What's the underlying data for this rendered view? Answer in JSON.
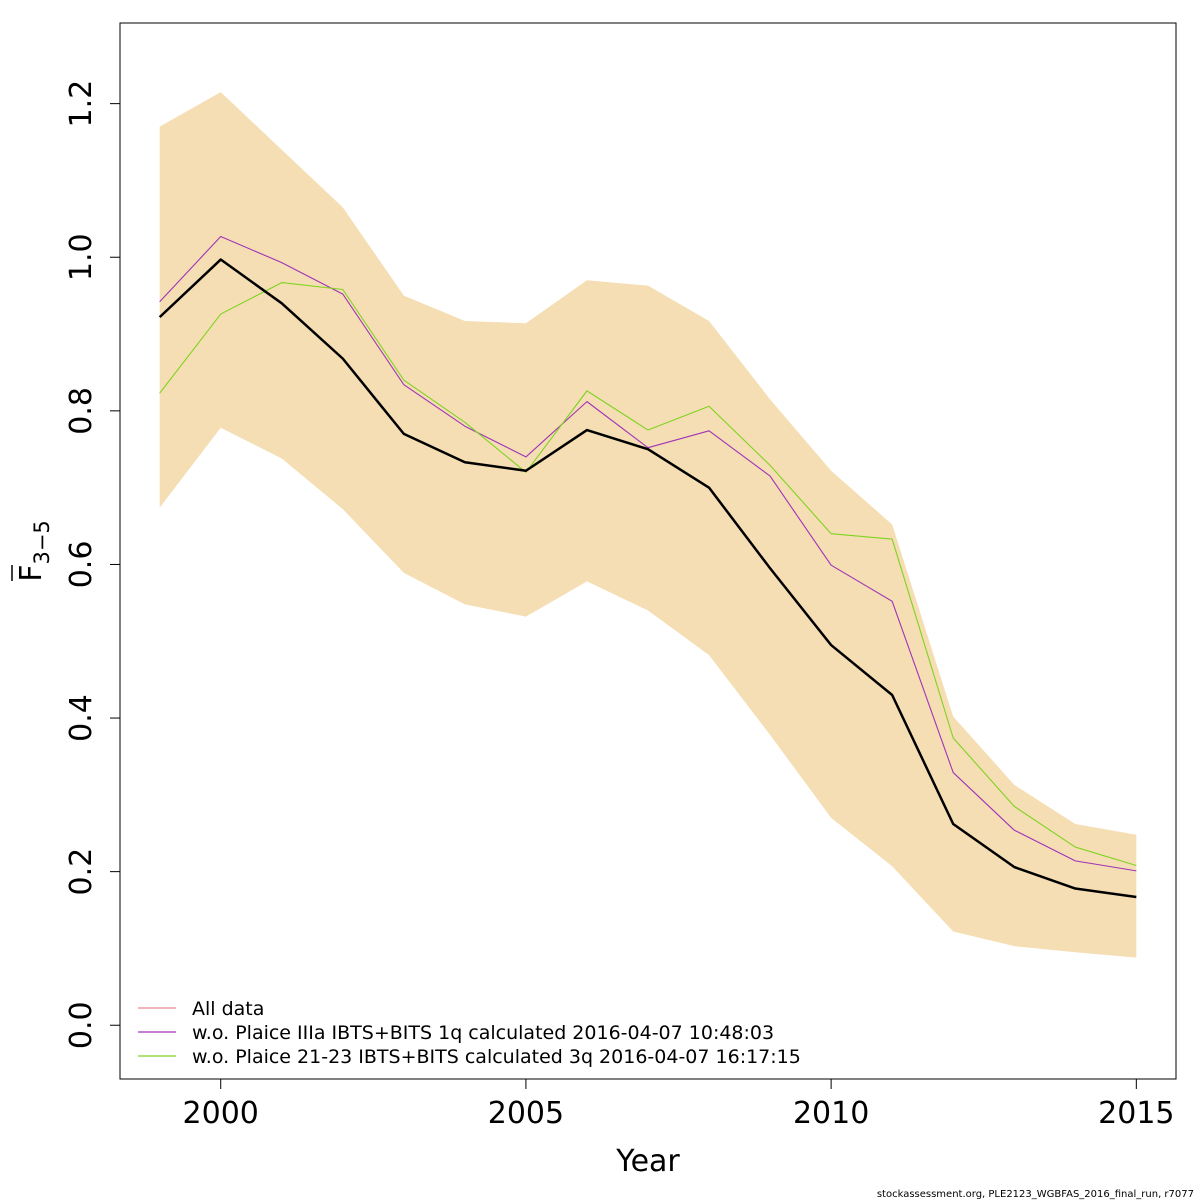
{
  "chart_data": {
    "type": "line",
    "xlabel": "Year",
    "ylabel_main": "F",
    "ylabel_sub": "3−5",
    "xlim": [
      1998.35,
      2015.65
    ],
    "ylim": [
      -0.07,
      1.305
    ],
    "x_ticks": [
      2000,
      2005,
      2010,
      2015
    ],
    "x_tick_labels": [
      "2000",
      "2005",
      "2010",
      "2015"
    ],
    "y_ticks": [
      0.0,
      0.2,
      0.4,
      0.6,
      0.8,
      1.0,
      1.2
    ],
    "y_tick_labels": [
      "0.0",
      "0.2",
      "0.4",
      "0.6",
      "0.8",
      "1.0",
      "1.2"
    ],
    "x": [
      1999,
      2000,
      2001,
      2002,
      2003,
      2004,
      2005,
      2006,
      2007,
      2008,
      2009,
      2010,
      2011,
      2012,
      2013,
      2014,
      2015
    ],
    "confidence_band": {
      "color": "#F5DEB3",
      "upper": [
        1.17,
        1.215,
        1.14,
        1.065,
        0.95,
        0.917,
        0.914,
        0.97,
        0.963,
        0.917,
        0.815,
        0.722,
        0.652,
        0.402,
        0.313,
        0.262,
        0.248
      ],
      "lower": [
        0.674,
        0.778,
        0.738,
        0.672,
        0.589,
        0.548,
        0.532,
        0.578,
        0.54,
        0.482,
        0.378,
        0.27,
        0.207,
        0.122,
        0.103,
        0.095,
        0.088
      ]
    },
    "series": [
      {
        "name": "All data",
        "color": "#000000",
        "legend_color": "#E8888F",
        "values": [
          0.922,
          0.997,
          0.94,
          0.868,
          0.77,
          0.733,
          0.722,
          0.775,
          0.75,
          0.7,
          0.595,
          0.495,
          0.43,
          0.262,
          0.206,
          0.178,
          0.167
        ]
      },
      {
        "name": "w.o. Plaice IIIa IBTS+BITS 1q calculated 2016-04-07 10:48:03",
        "color": "#A033B8",
        "values": [
          0.942,
          1.027,
          0.993,
          0.952,
          0.834,
          0.78,
          0.74,
          0.812,
          0.752,
          0.774,
          0.715,
          0.599,
          0.552,
          0.329,
          0.254,
          0.214,
          0.201
        ]
      },
      {
        "name": "w.o. Plaice 21-23 IBTS+BITS calculated 3q 2016-04-07 16:17:15",
        "color": "#7FD321",
        "values": [
          0.823,
          0.926,
          0.967,
          0.958,
          0.84,
          0.785,
          0.72,
          0.826,
          0.775,
          0.806,
          0.729,
          0.64,
          0.633,
          0.374,
          0.285,
          0.232,
          0.208
        ]
      }
    ],
    "legend_position": "bottom-left",
    "grid": false
  },
  "footer": "stockassessment.org, PLE2123_WGBFAS_2016_final_run, r7077"
}
